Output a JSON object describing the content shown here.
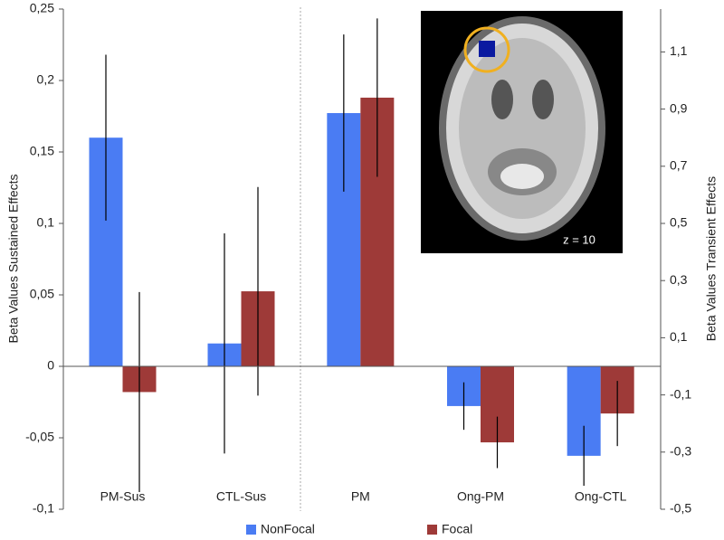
{
  "chart_data": [
    {
      "type": "bar",
      "ylabel": "Beta Values Sustained Effects",
      "categories": [
        "PM-Sus",
        "CTL-Sus"
      ],
      "series": [
        {
          "name": "NonFocal",
          "color": "#4a7cf3",
          "values": [
            0.16,
            0.016
          ],
          "errors": [
            0.058,
            0.077
          ]
        },
        {
          "name": "Focal",
          "color": "#9e3a38",
          "values": [
            -0.018,
            0.0525
          ],
          "errors": [
            0.07,
            0.073
          ]
        }
      ],
      "ylim": [
        -0.1,
        0.25
      ],
      "yticks": [
        {
          "value": 0.25,
          "label": "0,25"
        },
        {
          "value": 0.2,
          "label": "0,2"
        },
        {
          "value": 0.15,
          "label": "0,15"
        },
        {
          "value": 0.1,
          "label": "0,1"
        },
        {
          "value": 0.05,
          "label": "0,05"
        },
        0,
        {
          "value": -0.05,
          "label": "-0,05"
        },
        {
          "value": -0.1,
          "label": "-0,1"
        }
      ],
      "legend": "bottom"
    },
    {
      "type": "bar",
      "y2label": "Beta Values Transient Effects",
      "annotation": "z = 10",
      "categories": [
        "PM",
        "Ong-PM",
        "Ong-CTL"
      ],
      "series": [
        {
          "axis": "y2",
          "color": "#4a7cf3",
          "values": [
            0.886,
            -0.139,
            -0.313
          ],
          "errors": [
            0.275,
            0.083,
            0.105
          ]
        },
        {
          "axis": "y2",
          "color": "#9e3a38",
          "values": [
            0.94,
            -0.266,
            -0.165
          ],
          "errors": [
            0.277,
            0.09,
            0.114
          ]
        }
      ],
      "y2lim": [
        -0.5,
        1.25
      ],
      "y2ticks": [
        {
          "value": 1.1,
          "label": "1,1"
        },
        {
          "value": 0.9,
          "label": "0,9"
        },
        {
          "value": 0.7,
          "label": "0,7"
        },
        {
          "value": 0.5,
          "label": "0,5"
        },
        {
          "value": 0.3,
          "label": "0,3"
        },
        {
          "value": 0.1,
          "label": "0,1"
        },
        {
          "value": -0.1,
          "label": "-0,1"
        },
        {
          "value": -0.3,
          "label": "-0,3"
        },
        {
          "value": -0.5,
          "label": "-0,5"
        }
      ]
    }
  ]
}
